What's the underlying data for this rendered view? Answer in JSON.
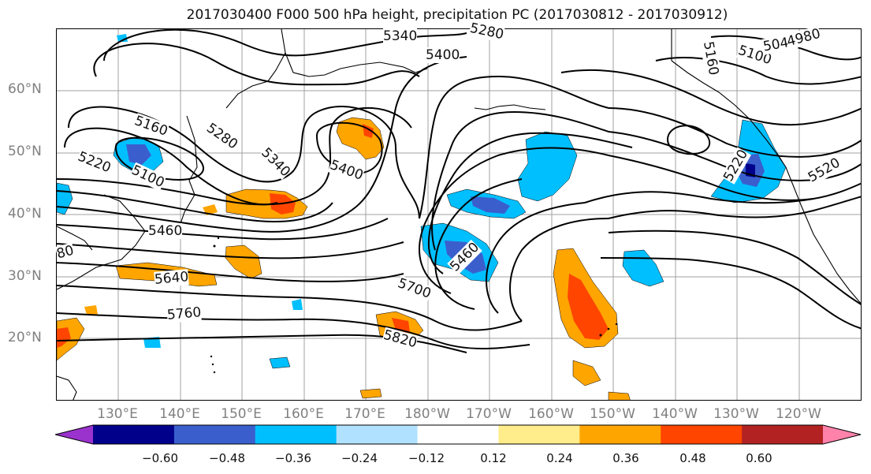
{
  "title": "2017030400 F000 500 hPa height, precipitation PC (2017030812 - 2017030912)",
  "lat_labels": [
    "60°N",
    "50°N",
    "40°N",
    "30°N",
    "20°N"
  ],
  "lon_labels": [
    "130°E",
    "140°E",
    "150°E",
    "160°E",
    "170°E",
    "180°W",
    "170°W",
    "160°W",
    "150°W",
    "140°W",
    "130°W",
    "120°W"
  ],
  "contour_labels": [
    "5340",
    "5280",
    "5400",
    "5160",
    "5100",
    "5220",
    "5280",
    "5340",
    "5400",
    "5460",
    "5640",
    "5460",
    "5700",
    "5760",
    "5820",
    "5160",
    "5220",
    "5100",
    "5040",
    "4980",
    "5520",
    "80"
  ],
  "colorbar": {
    "colors": [
      "#9a32cd",
      "#00008b",
      "#3a5fcd",
      "#00bfff",
      "#b0e2ff",
      "#ffffff",
      "#ffec8b",
      "#ffa500",
      "#ff4500",
      "#b22222",
      "#ff82ab"
    ],
    "tick_labels": [
      "−0.60",
      "−0.48",
      "−0.36",
      "−0.24",
      "−0.12",
      "0.12",
      "0.24",
      "0.36",
      "0.48",
      "0.60"
    ]
  }
}
